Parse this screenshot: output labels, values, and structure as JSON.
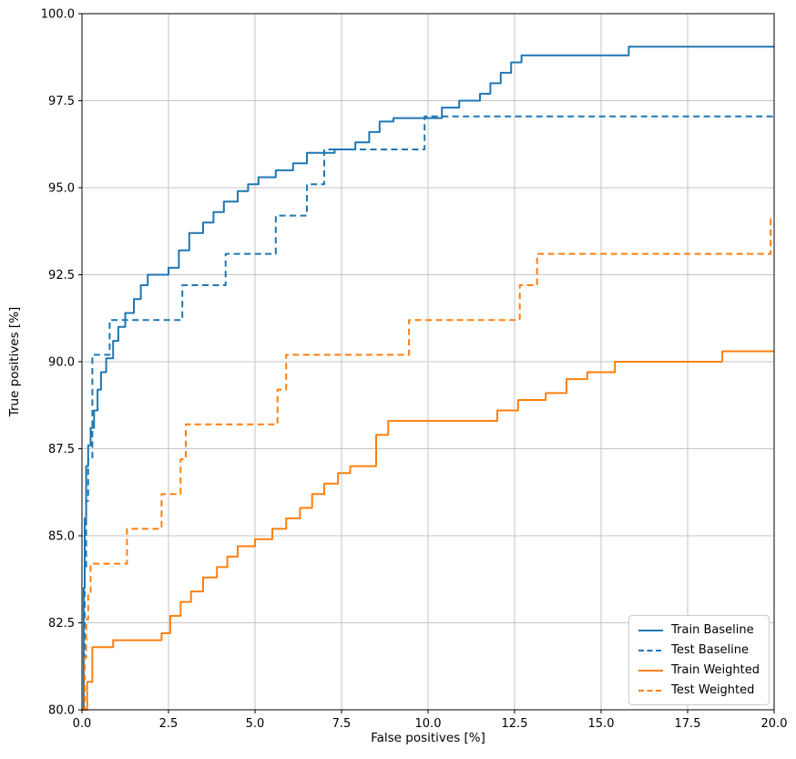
{
  "chart_data": {
    "type": "line",
    "title": "",
    "xlabel": "False positives [%]",
    "ylabel": "True positives [%]",
    "xlim": [
      0,
      20
    ],
    "ylim": [
      80,
      100
    ],
    "grid": true,
    "grid_color": "#c6c6c6",
    "spine_color": "#000000",
    "legend_position": "lower right",
    "line_width": 2,
    "step_mode": "post",
    "xticks": {
      "values": [
        0,
        2.5,
        5,
        7.5,
        10,
        12.5,
        15,
        17.5,
        20
      ],
      "labels": [
        "0.0",
        "2.5",
        "5.0",
        "7.5",
        "10.0",
        "12.5",
        "15.0",
        "17.5",
        "20.0"
      ]
    },
    "yticks": {
      "values": [
        80,
        82.5,
        85,
        87.5,
        90,
        92.5,
        95,
        97.5,
        100
      ],
      "labels": [
        "80.0",
        "82.5",
        "85.0",
        "87.5",
        "90.0",
        "92.5",
        "95.0",
        "97.5",
        "100.0"
      ]
    },
    "series": [
      {
        "name": "Train Baseline",
        "color": "#1f77b4",
        "style": "solid",
        "points": [
          [
            0,
            80
          ],
          [
            0.05,
            83.5
          ],
          [
            0.08,
            85.5
          ],
          [
            0.12,
            87.0
          ],
          [
            0.18,
            87.6
          ],
          [
            0.25,
            88.1
          ],
          [
            0.35,
            88.6
          ],
          [
            0.45,
            89.2
          ],
          [
            0.55,
            89.7
          ],
          [
            0.7,
            90.1
          ],
          [
            0.9,
            90.6
          ],
          [
            1.05,
            91.0
          ],
          [
            1.25,
            91.4
          ],
          [
            1.5,
            91.8
          ],
          [
            1.7,
            92.2
          ],
          [
            1.9,
            92.5
          ],
          [
            2.5,
            92.7
          ],
          [
            2.8,
            93.2
          ],
          [
            3.1,
            93.7
          ],
          [
            3.5,
            94.0
          ],
          [
            3.8,
            94.3
          ],
          [
            4.1,
            94.6
          ],
          [
            4.5,
            94.9
          ],
          [
            4.8,
            95.1
          ],
          [
            5.1,
            95.3
          ],
          [
            5.6,
            95.5
          ],
          [
            6.1,
            95.7
          ],
          [
            6.5,
            96.0
          ],
          [
            7.3,
            96.1
          ],
          [
            7.9,
            96.3
          ],
          [
            8.3,
            96.6
          ],
          [
            8.6,
            96.9
          ],
          [
            9.0,
            97.0
          ],
          [
            10.4,
            97.3
          ],
          [
            10.9,
            97.5
          ],
          [
            11.5,
            97.7
          ],
          [
            11.8,
            98.0
          ],
          [
            12.1,
            98.3
          ],
          [
            12.4,
            98.6
          ],
          [
            12.7,
            98.8
          ],
          [
            15.8,
            99.05
          ],
          [
            20,
            99.05
          ]
        ]
      },
      {
        "name": "Test Baseline",
        "color": "#1f77b4",
        "style": "dashed",
        "points": [
          [
            0,
            80
          ],
          [
            0.08,
            84.0
          ],
          [
            0.12,
            86.0
          ],
          [
            0.18,
            87.2
          ],
          [
            0.3,
            90.2
          ],
          [
            0.8,
            91.2
          ],
          [
            2.9,
            92.2
          ],
          [
            4.15,
            93.1
          ],
          [
            5.6,
            94.2
          ],
          [
            6.5,
            95.1
          ],
          [
            7.0,
            96.1
          ],
          [
            9.9,
            97.05
          ],
          [
            20,
            97.05
          ]
        ]
      },
      {
        "name": "Train Weighted",
        "color": "#ff7f0e",
        "style": "solid",
        "points": [
          [
            0,
            80
          ],
          [
            0.15,
            80.8
          ],
          [
            0.3,
            81.8
          ],
          [
            0.9,
            82.0
          ],
          [
            2.3,
            82.2
          ],
          [
            2.55,
            82.7
          ],
          [
            2.85,
            83.1
          ],
          [
            3.15,
            83.4
          ],
          [
            3.5,
            83.8
          ],
          [
            3.9,
            84.1
          ],
          [
            4.2,
            84.4
          ],
          [
            4.5,
            84.7
          ],
          [
            5.0,
            84.9
          ],
          [
            5.5,
            85.2
          ],
          [
            5.9,
            85.5
          ],
          [
            6.3,
            85.8
          ],
          [
            6.65,
            86.2
          ],
          [
            7.0,
            86.5
          ],
          [
            7.4,
            86.8
          ],
          [
            7.75,
            87.0
          ],
          [
            8.5,
            87.9
          ],
          [
            8.85,
            88.3
          ],
          [
            12.0,
            88.6
          ],
          [
            12.6,
            88.9
          ],
          [
            13.4,
            89.1
          ],
          [
            14.0,
            89.5
          ],
          [
            14.6,
            89.7
          ],
          [
            15.4,
            90.0
          ],
          [
            18.5,
            90.3
          ],
          [
            20,
            90.3
          ]
        ]
      },
      {
        "name": "Test Weighted",
        "color": "#ff7f0e",
        "style": "dashed",
        "points": [
          [
            0,
            80
          ],
          [
            0.08,
            81.5
          ],
          [
            0.12,
            82.6
          ],
          [
            0.18,
            83.3
          ],
          [
            0.25,
            84.2
          ],
          [
            1.3,
            85.2
          ],
          [
            2.3,
            86.2
          ],
          [
            2.85,
            87.2
          ],
          [
            3.0,
            88.2
          ],
          [
            5.65,
            89.2
          ],
          [
            5.9,
            90.2
          ],
          [
            9.45,
            91.2
          ],
          [
            12.65,
            92.2
          ],
          [
            13.15,
            93.1
          ],
          [
            19.9,
            94.1
          ],
          [
            20,
            94.1
          ]
        ]
      }
    ]
  }
}
